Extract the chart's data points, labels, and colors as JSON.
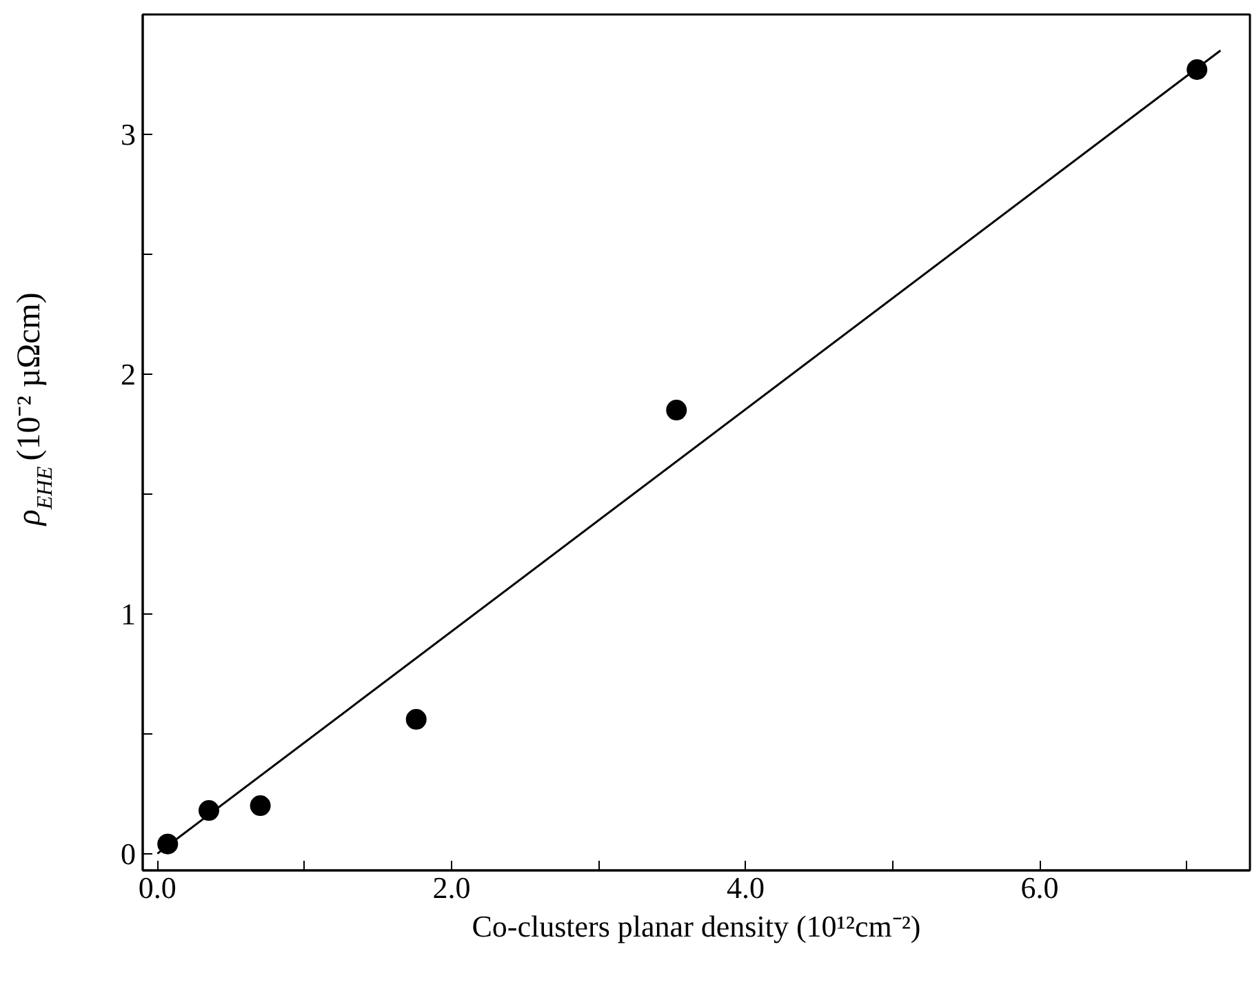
{
  "chart_data": {
    "type": "scatter",
    "xlabel": "Co-clusters planar density (10¹²cm⁻²)",
    "ylabel": "ρ$_{EHE}$ (10⁻² µΩcm)",
    "xlim": [
      -0.1,
      7.43
    ],
    "ylim": [
      -0.07,
      3.5
    ],
    "xticks": [
      {
        "value": 0,
        "label": "0.0"
      },
      {
        "value": 1,
        "label": null
      },
      {
        "value": 2,
        "label": "2.0"
      },
      {
        "value": 3,
        "label": null
      },
      {
        "value": 4,
        "label": "4.0"
      },
      {
        "value": 5,
        "label": null
      },
      {
        "value": 6,
        "label": "6.0"
      },
      {
        "value": 7,
        "label": null
      }
    ],
    "yticks": [
      0,
      {
        "value": 0.5,
        "label": null
      },
      1,
      {
        "value": 1.5,
        "label": null
      },
      2,
      {
        "value": 2.5,
        "label": null
      },
      3
    ],
    "grid": false,
    "series": [
      {
        "color": "#000000",
        "marker": "circle",
        "x": [
          0.07,
          0.35,
          0.7,
          1.76,
          3.53,
          7.07
        ],
        "values": [
          0.04,
          0.18,
          0.2,
          0.56,
          1.85,
          3.27
        ]
      },
      {
        "type": "line",
        "color": "#000000",
        "x": [
          0.0,
          7.23
        ],
        "values": [
          0.0,
          3.35
        ]
      }
    ]
  }
}
